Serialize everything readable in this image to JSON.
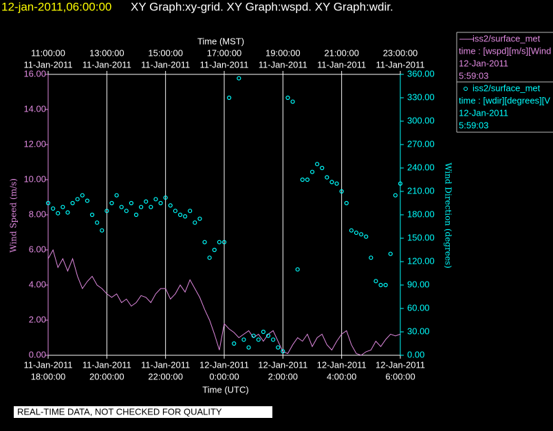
{
  "chart_data": {
    "type": "line",
    "timestamp": "12-jan-2011,06:00:00",
    "title": "XY Graph:xy-grid.  XY Graph:wspd.  XY Graph:wdir.",
    "xlabel": "Time (UTC)",
    "x2label": "Time (MST)",
    "ylabel": "Wind Speed (m/s)",
    "y2label": "Wind Direction (degrees)",
    "note": "REAL-TIME DATA, NOT CHECKED FOR QUALITY",
    "grid": "x",
    "xlim": [
      "11-Jan-2011 18:00:00",
      "12-Jan-2011 06:00:00"
    ],
    "xticks": [
      {
        "value": "11-Jan-2011 18:00:00",
        "label": [
          "11-Jan-2011",
          "18:00:00"
        ]
      },
      {
        "value": "11-Jan-2011 20:00:00",
        "label": [
          "11-Jan-2011",
          "20:00:00"
        ]
      },
      {
        "value": "11-Jan-2011 22:00:00",
        "label": [
          "11-Jan-2011",
          "22:00:00"
        ]
      },
      {
        "value": "12-Jan-2011 00:00:00",
        "label": [
          "12-Jan-2011",
          "0:00:00"
        ]
      },
      {
        "value": "12-Jan-2011 02:00:00",
        "label": [
          "12-Jan-2011",
          "2:00:00"
        ]
      },
      {
        "value": "12-Jan-2011 04:00:00",
        "label": [
          "12-Jan-2011",
          "4:00:00"
        ]
      },
      {
        "value": "12-Jan-2011 06:00:00",
        "label": [
          "12-Jan-2011",
          "6:00:00"
        ]
      }
    ],
    "x2lim": [
      "11-Jan-2011 11:00:00",
      "11-Jan-2011 23:00:00"
    ],
    "x2ticks": [
      {
        "value": "11-Jan-2011 11:00:00",
        "label": [
          "11:00:00",
          "11-Jan-2011"
        ]
      },
      {
        "value": "11-Jan-2011 13:00:00",
        "label": [
          "13:00:00",
          "11-Jan-2011"
        ]
      },
      {
        "value": "11-Jan-2011 15:00:00",
        "label": [
          "15:00:00",
          "11-Jan-2011"
        ]
      },
      {
        "value": "11-Jan-2011 17:00:00",
        "label": [
          "17:00:00",
          "11-Jan-2011"
        ]
      },
      {
        "value": "11-Jan-2011 19:00:00",
        "label": [
          "19:00:00",
          "11-Jan-2011"
        ]
      },
      {
        "value": "11-Jan-2011 21:00:00",
        "label": [
          "21:00:00",
          "11-Jan-2011"
        ]
      },
      {
        "value": "11-Jan-2011 23:00:00",
        "label": [
          "23:00:00",
          "11-Jan-2011"
        ]
      }
    ],
    "ylim": [
      0,
      16
    ],
    "yticks": [
      {
        "value": 0,
        "label": "0.00"
      },
      {
        "value": 2,
        "label": "2.00"
      },
      {
        "value": 4,
        "label": "4.00"
      },
      {
        "value": 6,
        "label": "6.00"
      },
      {
        "value": 8,
        "label": "8.00"
      },
      {
        "value": 10,
        "label": "10.00"
      },
      {
        "value": 12,
        "label": "12.00"
      },
      {
        "value": 14,
        "label": "14.00"
      },
      {
        "value": 16,
        "label": "16.00"
      }
    ],
    "y2lim": [
      0,
      360
    ],
    "y2ticks": [
      {
        "value": 0,
        "label": "0.00"
      },
      {
        "value": 30,
        "label": "30.00"
      },
      {
        "value": 60,
        "label": "60.00"
      },
      {
        "value": 90,
        "label": "90.00"
      },
      {
        "value": 120,
        "label": "120.00"
      },
      {
        "value": 150,
        "label": "150.00"
      },
      {
        "value": 180,
        "label": "180.00"
      },
      {
        "value": 210,
        "label": "210.00"
      },
      {
        "value": 240,
        "label": "240.00"
      },
      {
        "value": 270,
        "label": "270.00"
      },
      {
        "value": 300,
        "label": "300.00"
      },
      {
        "value": 330,
        "label": "330.00"
      },
      {
        "value": 360,
        "label": "360.00"
      }
    ],
    "x": [
      "11-Jan-2011 18:00:00",
      "11-Jan-2011 18:10:00",
      "11-Jan-2011 18:20:00",
      "11-Jan-2011 18:30:00",
      "11-Jan-2011 18:40:00",
      "11-Jan-2011 18:50:00",
      "11-Jan-2011 19:00:00",
      "11-Jan-2011 19:10:00",
      "11-Jan-2011 19:20:00",
      "11-Jan-2011 19:30:00",
      "11-Jan-2011 19:40:00",
      "11-Jan-2011 19:50:00",
      "11-Jan-2011 20:00:00",
      "11-Jan-2011 20:10:00",
      "11-Jan-2011 20:20:00",
      "11-Jan-2011 20:30:00",
      "11-Jan-2011 20:40:00",
      "11-Jan-2011 20:50:00",
      "11-Jan-2011 21:00:00",
      "11-Jan-2011 21:10:00",
      "11-Jan-2011 21:20:00",
      "11-Jan-2011 21:30:00",
      "11-Jan-2011 21:40:00",
      "11-Jan-2011 21:50:00",
      "11-Jan-2011 22:00:00",
      "11-Jan-2011 22:10:00",
      "11-Jan-2011 22:20:00",
      "11-Jan-2011 22:30:00",
      "11-Jan-2011 22:40:00",
      "11-Jan-2011 22:50:00",
      "11-Jan-2011 23:00:00",
      "11-Jan-2011 23:10:00",
      "11-Jan-2011 23:20:00",
      "11-Jan-2011 23:30:00",
      "11-Jan-2011 23:40:00",
      "11-Jan-2011 23:50:00",
      "12-Jan-2011 00:00:00",
      "12-Jan-2011 00:10:00",
      "12-Jan-2011 00:20:00",
      "12-Jan-2011 00:30:00",
      "12-Jan-2011 00:40:00",
      "12-Jan-2011 00:50:00",
      "12-Jan-2011 01:00:00",
      "12-Jan-2011 01:10:00",
      "12-Jan-2011 01:20:00",
      "12-Jan-2011 01:30:00",
      "12-Jan-2011 01:40:00",
      "12-Jan-2011 01:50:00",
      "12-Jan-2011 02:00:00",
      "12-Jan-2011 02:10:00",
      "12-Jan-2011 02:20:00",
      "12-Jan-2011 02:30:00",
      "12-Jan-2011 02:40:00",
      "12-Jan-2011 02:50:00",
      "12-Jan-2011 03:00:00",
      "12-Jan-2011 03:10:00",
      "12-Jan-2011 03:20:00",
      "12-Jan-2011 03:30:00",
      "12-Jan-2011 03:40:00",
      "12-Jan-2011 03:50:00",
      "12-Jan-2011 04:00:00",
      "12-Jan-2011 04:10:00",
      "12-Jan-2011 04:20:00",
      "12-Jan-2011 04:30:00",
      "12-Jan-2011 04:40:00",
      "12-Jan-2011 04:50:00",
      "12-Jan-2011 05:00:00",
      "12-Jan-2011 05:10:00",
      "12-Jan-2011 05:20:00",
      "12-Jan-2011 05:30:00",
      "12-Jan-2011 05:40:00",
      "12-Jan-2011 05:50:00",
      "12-Jan-2011 06:00:00"
    ],
    "series": [
      {
        "name": "iss2/surface_met",
        "type": "line",
        "axis": "y",
        "color": "#e08ae0",
        "legend_lines": [
          "time : [wspd][m/s][Wind",
          "12-Jan-2011",
          "5:59:03"
        ],
        "values": [
          5.5,
          6.0,
          5.0,
          5.5,
          4.8,
          5.5,
          4.5,
          3.8,
          4.2,
          4.5,
          4.0,
          3.8,
          3.5,
          3.3,
          3.5,
          3.0,
          3.2,
          2.8,
          3.0,
          3.4,
          3.3,
          3.0,
          3.5,
          3.8,
          3.8,
          3.2,
          3.5,
          4.0,
          3.6,
          4.3,
          3.8,
          3.3,
          2.6,
          2.0,
          1.2,
          0.3,
          1.8,
          1.5,
          1.3,
          1.0,
          1.2,
          1.4,
          1.0,
          1.2,
          0.8,
          1.2,
          1.4,
          0.8,
          0.2,
          0.1,
          0.6,
          1.0,
          0.8,
          1.2,
          0.5,
          1.0,
          1.2,
          0.6,
          0.3,
          0.8,
          1.2,
          1.4,
          0.6,
          0.1,
          0.0,
          0.2,
          0.3,
          0.8,
          0.5,
          0.9,
          1.2,
          1.1,
          1.2
        ]
      },
      {
        "name": "iss2/surface_met",
        "type": "scatter",
        "axis": "y2",
        "color": "#00ffff",
        "legend_lines": [
          "time : [wdir][degrees][V",
          "12-Jan-2011",
          "5:59:03"
        ],
        "values": [
          195,
          188,
          182,
          190,
          183,
          195,
          200,
          205,
          198,
          180,
          170,
          160,
          185,
          195,
          205,
          190,
          185,
          195,
          180,
          190,
          197,
          190,
          200,
          195,
          202,
          192,
          185,
          180,
          178,
          185,
          170,
          175,
          145,
          125,
          135,
          145,
          145,
          330,
          15,
          355,
          20,
          10,
          25,
          20,
          30,
          25,
          20,
          10,
          5,
          330,
          325,
          110,
          225,
          225,
          235,
          245,
          240,
          228,
          222,
          220,
          210,
          195,
          160,
          157,
          155,
          152,
          125,
          95,
          90,
          90,
          130,
          205,
          220
        ]
      }
    ]
  }
}
